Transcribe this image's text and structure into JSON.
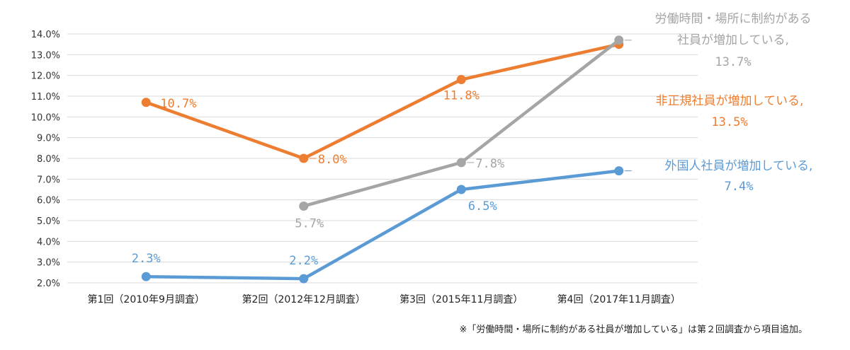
{
  "chart_data": {
    "type": "line",
    "categories": [
      "第1回（2010年9月調査）",
      "第2回（2012年12月調査）",
      "第3回（2015年11月調査）",
      "第4回（2017年11月調査）"
    ],
    "ylim": [
      2.0,
      14.0
    ],
    "yticks": [
      "2.0%",
      "3.0%",
      "4.0%",
      "5.0%",
      "6.0%",
      "7.0%",
      "8.0%",
      "9.0%",
      "10.0%",
      "11.0%",
      "12.0%",
      "13.0%",
      "14.0%"
    ],
    "grid": true,
    "series": [
      {
        "name_lines": [
          "非正規社員が増加している,"
        ],
        "color": "#ED7D31",
        "values": [
          10.7,
          8.0,
          11.8,
          13.5
        ],
        "labels": [
          "10.7%",
          "8.0%",
          "11.8%",
          "13.5%"
        ]
      },
      {
        "name_lines": [
          "労働時間・場所に制約がある",
          "社員が増加している,"
        ],
        "color": "#A5A5A5",
        "values": [
          null,
          5.7,
          7.8,
          13.7
        ],
        "labels": [
          null,
          "5.7%",
          "7.8%",
          "13.7%"
        ]
      },
      {
        "name_lines": [
          "外国人社員が増加している,"
        ],
        "color": "#5B9BD5",
        "values": [
          2.3,
          2.2,
          6.5,
          7.4
        ],
        "labels": [
          "2.3%",
          "2.2%",
          "6.5%",
          "7.4%"
        ]
      }
    ],
    "footnote": "※「労働時間・場所に制約がある社員が増加している」は第２回調査から項目追加。"
  }
}
